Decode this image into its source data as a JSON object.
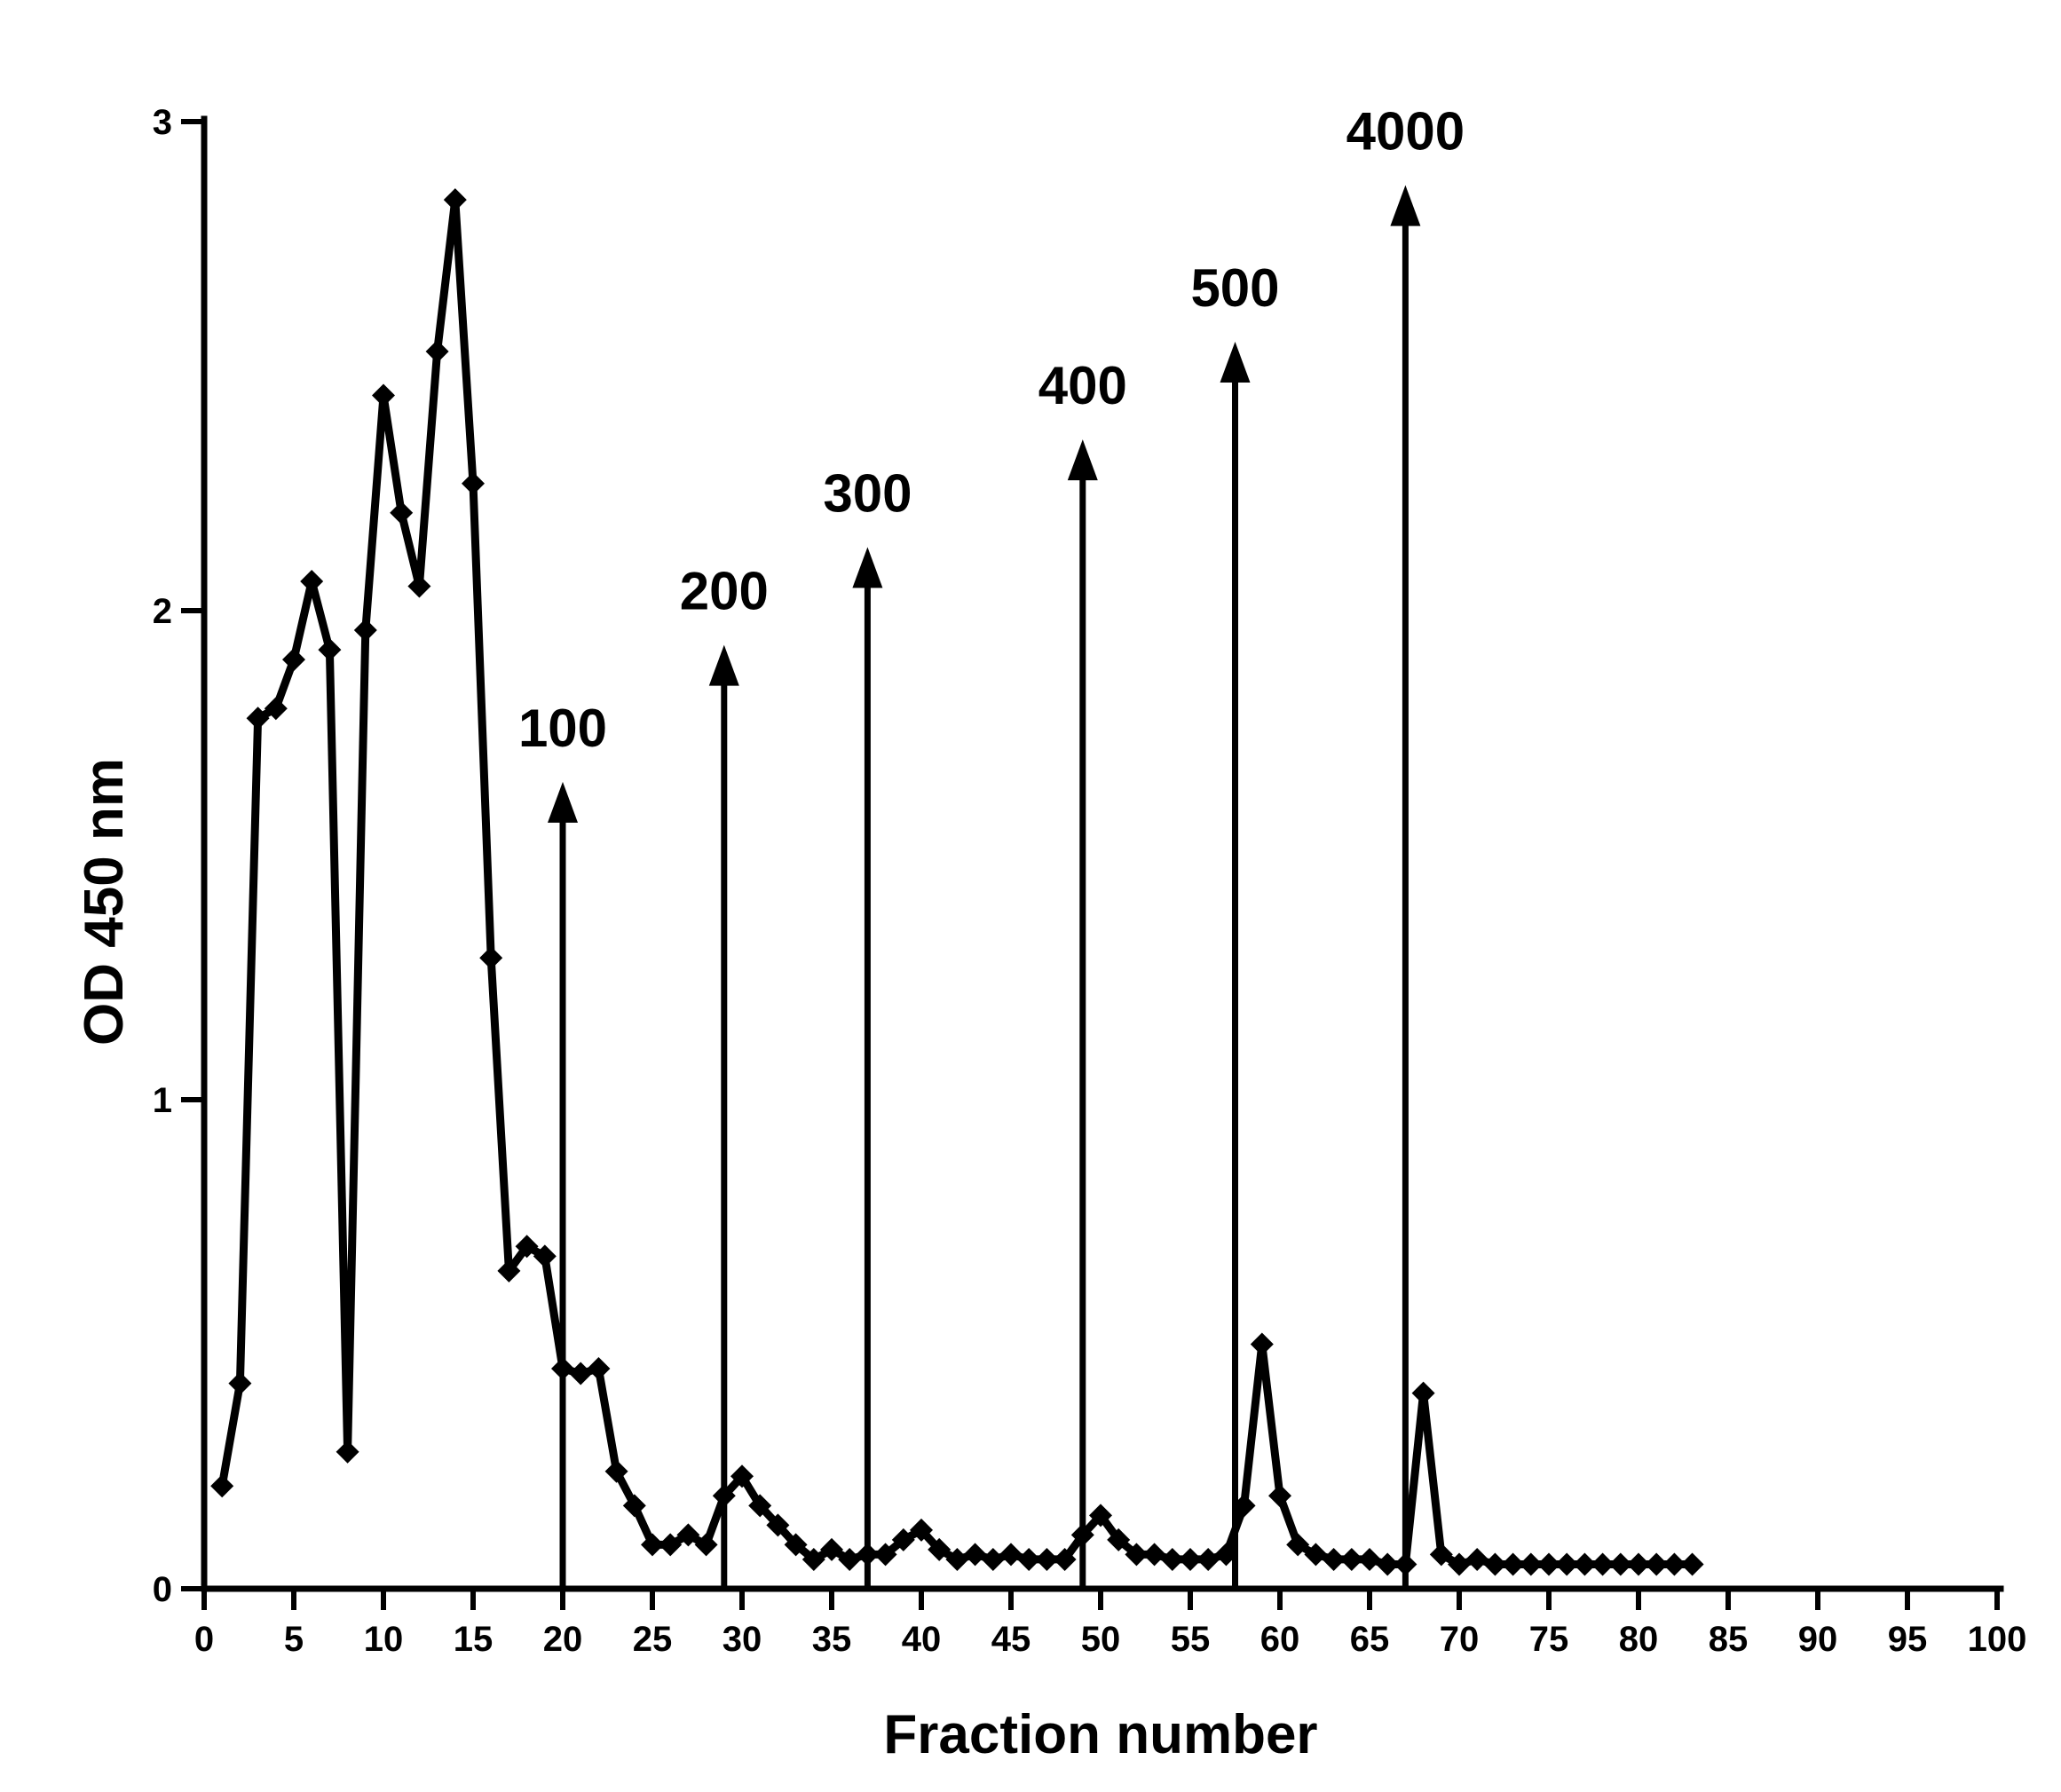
{
  "chart_data": {
    "type": "line",
    "title": "",
    "xlabel": "Fraction number",
    "ylabel": "OD 450 nm",
    "xlim": [
      0,
      100
    ],
    "ylim": [
      0,
      3
    ],
    "x_ticks": [
      "0",
      "5",
      "10",
      "15",
      "20",
      "25",
      "30",
      "35",
      "40",
      "45",
      "50",
      "55",
      "60",
      "65",
      "70",
      "75",
      "80",
      "85",
      "90",
      "95",
      "100"
    ],
    "y_ticks": [
      "0",
      "1",
      "2",
      "3"
    ],
    "grid": false,
    "marker": "diamond",
    "line_color": "#000000",
    "series": [
      {
        "x": [
          1,
          2,
          3,
          4,
          5,
          6,
          7,
          8,
          9,
          10,
          11,
          12,
          13,
          14,
          15,
          16,
          17,
          18,
          19,
          20,
          21,
          22,
          23,
          24,
          25,
          26,
          27,
          28,
          29,
          30,
          31,
          32,
          33,
          34,
          35,
          36,
          37,
          38,
          39,
          40,
          41,
          42,
          43,
          44,
          45,
          46,
          47,
          48,
          49,
          50,
          51,
          52,
          53,
          54,
          55,
          56,
          57,
          58,
          59,
          60,
          61,
          62,
          63,
          64,
          65,
          66,
          67,
          68,
          69,
          70,
          71,
          72,
          73,
          74,
          75,
          76,
          77,
          78,
          79,
          80,
          81,
          82,
          83
        ],
        "y": [
          0.21,
          0.42,
          1.78,
          1.8,
          1.9,
          2.06,
          1.92,
          0.28,
          1.96,
          2.44,
          2.2,
          2.05,
          2.53,
          2.84,
          2.26,
          1.29,
          0.65,
          0.7,
          0.68,
          0.45,
          0.44,
          0.45,
          0.24,
          0.17,
          0.09,
          0.09,
          0.11,
          0.09,
          0.19,
          0.23,
          0.17,
          0.13,
          0.09,
          0.06,
          0.08,
          0.06,
          0.07,
          0.07,
          0.1,
          0.12,
          0.08,
          0.06,
          0.07,
          0.06,
          0.07,
          0.06,
          0.06,
          0.06,
          0.11,
          0.15,
          0.1,
          0.07,
          0.07,
          0.06,
          0.06,
          0.06,
          0.07,
          0.17,
          0.5,
          0.19,
          0.09,
          0.07,
          0.06,
          0.06,
          0.06,
          0.05,
          0.05,
          0.4,
          0.07,
          0.05,
          0.06,
          0.05,
          0.05,
          0.05,
          0.05,
          0.05,
          0.05,
          0.05,
          0.05,
          0.05,
          0.05,
          0.05,
          0.05
        ]
      }
    ],
    "annotations": [
      {
        "label": "100",
        "x": 20,
        "y_top": 1.65
      },
      {
        "label": "200",
        "x": 29,
        "y_top": 1.93
      },
      {
        "label": "300",
        "x": 37,
        "y_top": 2.13
      },
      {
        "label": "400",
        "x": 49,
        "y_top": 2.35
      },
      {
        "label": "500",
        "x": 57.5,
        "y_top": 2.55
      },
      {
        "label": "4000",
        "x": 67,
        "y_top": 2.87
      }
    ]
  }
}
